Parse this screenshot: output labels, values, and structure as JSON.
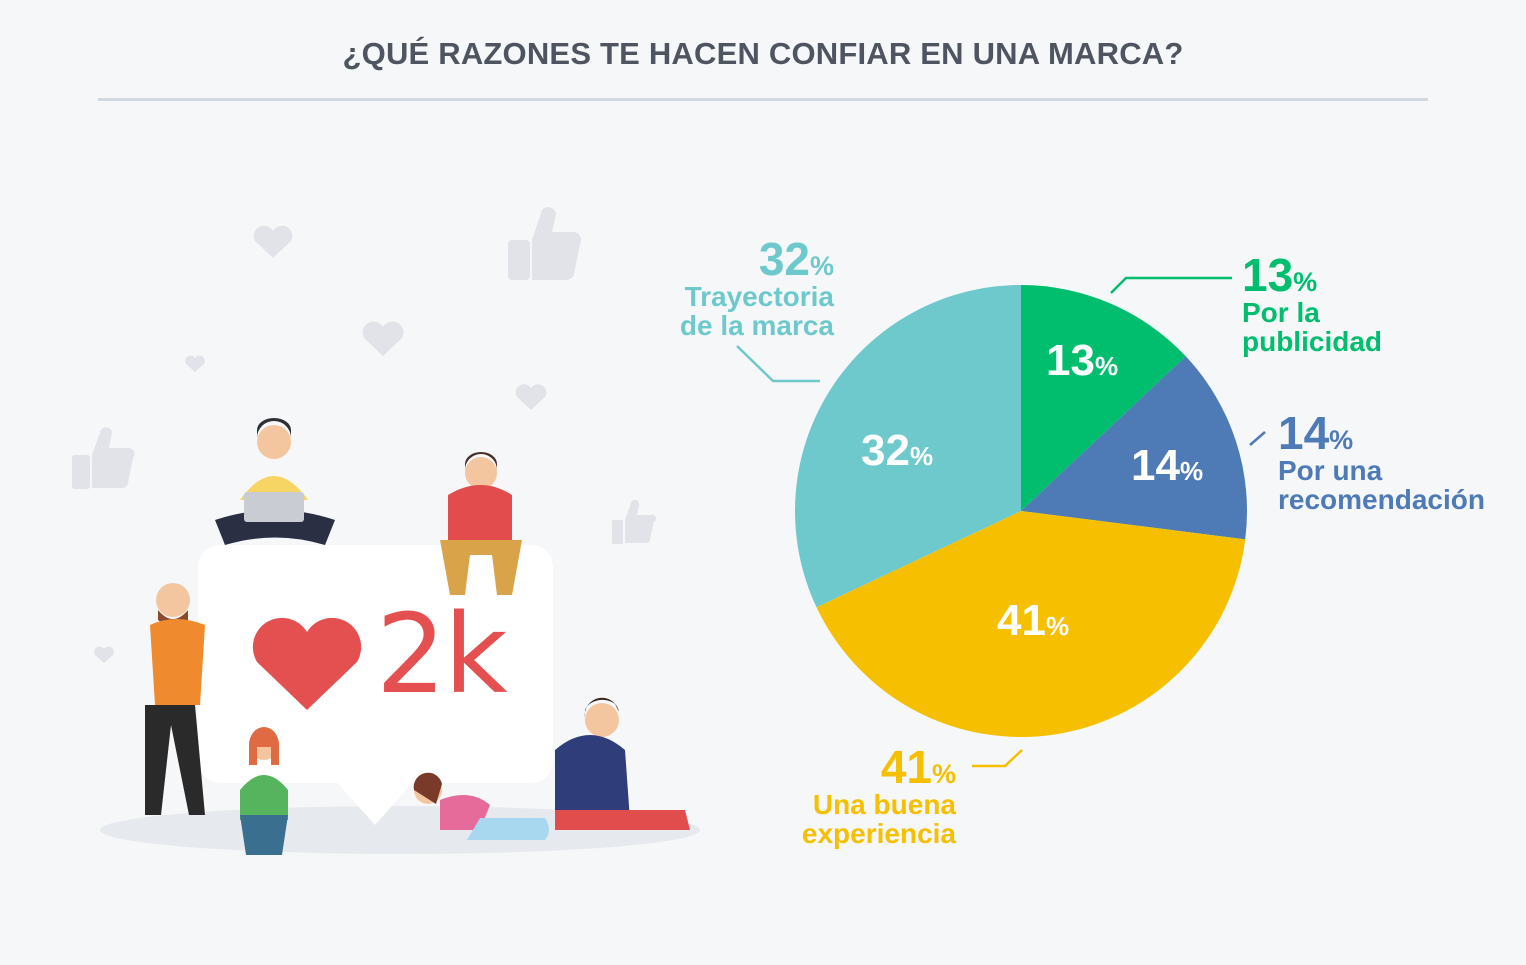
{
  "title": "¿QUÉ RAZONES TE HACEN CONFIAR EN UNA MARCA?",
  "bubble": {
    "count": "2k"
  },
  "chart_data": {
    "type": "pie",
    "title": "¿QUÉ RAZONES TE HACEN CONFIAR EN UNA MARCA?",
    "unit": "%",
    "slices": [
      {
        "label_lines": [
          "Por la",
          "publicidad"
        ],
        "value": 13,
        "display": "13",
        "color": "#00be6e"
      },
      {
        "label_lines": [
          "Por una",
          "recomendación"
        ],
        "value": 14,
        "display": "14",
        "color": "#4e7bb5"
      },
      {
        "label_lines": [
          "Una buena",
          "experiencia"
        ],
        "value": 41,
        "display": "41",
        "color": "#f6bf00"
      },
      {
        "label_lines": [
          "Trayectoria",
          "de la marca"
        ],
        "value": 32,
        "display": "32",
        "color": "#6ec9cc"
      }
    ]
  }
}
